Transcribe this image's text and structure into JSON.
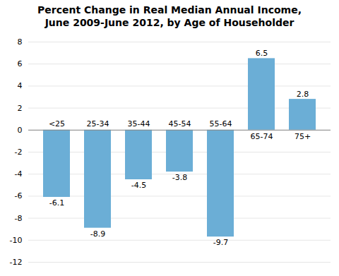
{
  "chart_data": {
    "type": "bar",
    "title": "Percent Change in Real Median Annual Income,\nJune 2009-June 2012, by Age of Householder",
    "categories": [
      "<25",
      "25-34",
      "35-44",
      "45-54",
      "55-64",
      "65-74",
      "75+"
    ],
    "values": [
      -6.1,
      -8.9,
      -4.5,
      -3.8,
      -9.7,
      6.5,
      2.8
    ],
    "color": "#6baed6",
    "ylim": [
      -12,
      8
    ],
    "yticks": [
      -12,
      -10,
      -8,
      -6,
      -4,
      -2,
      0,
      2,
      4,
      6,
      8
    ],
    "grid": true,
    "data_labels": true,
    "tick_labels": "y"
  }
}
